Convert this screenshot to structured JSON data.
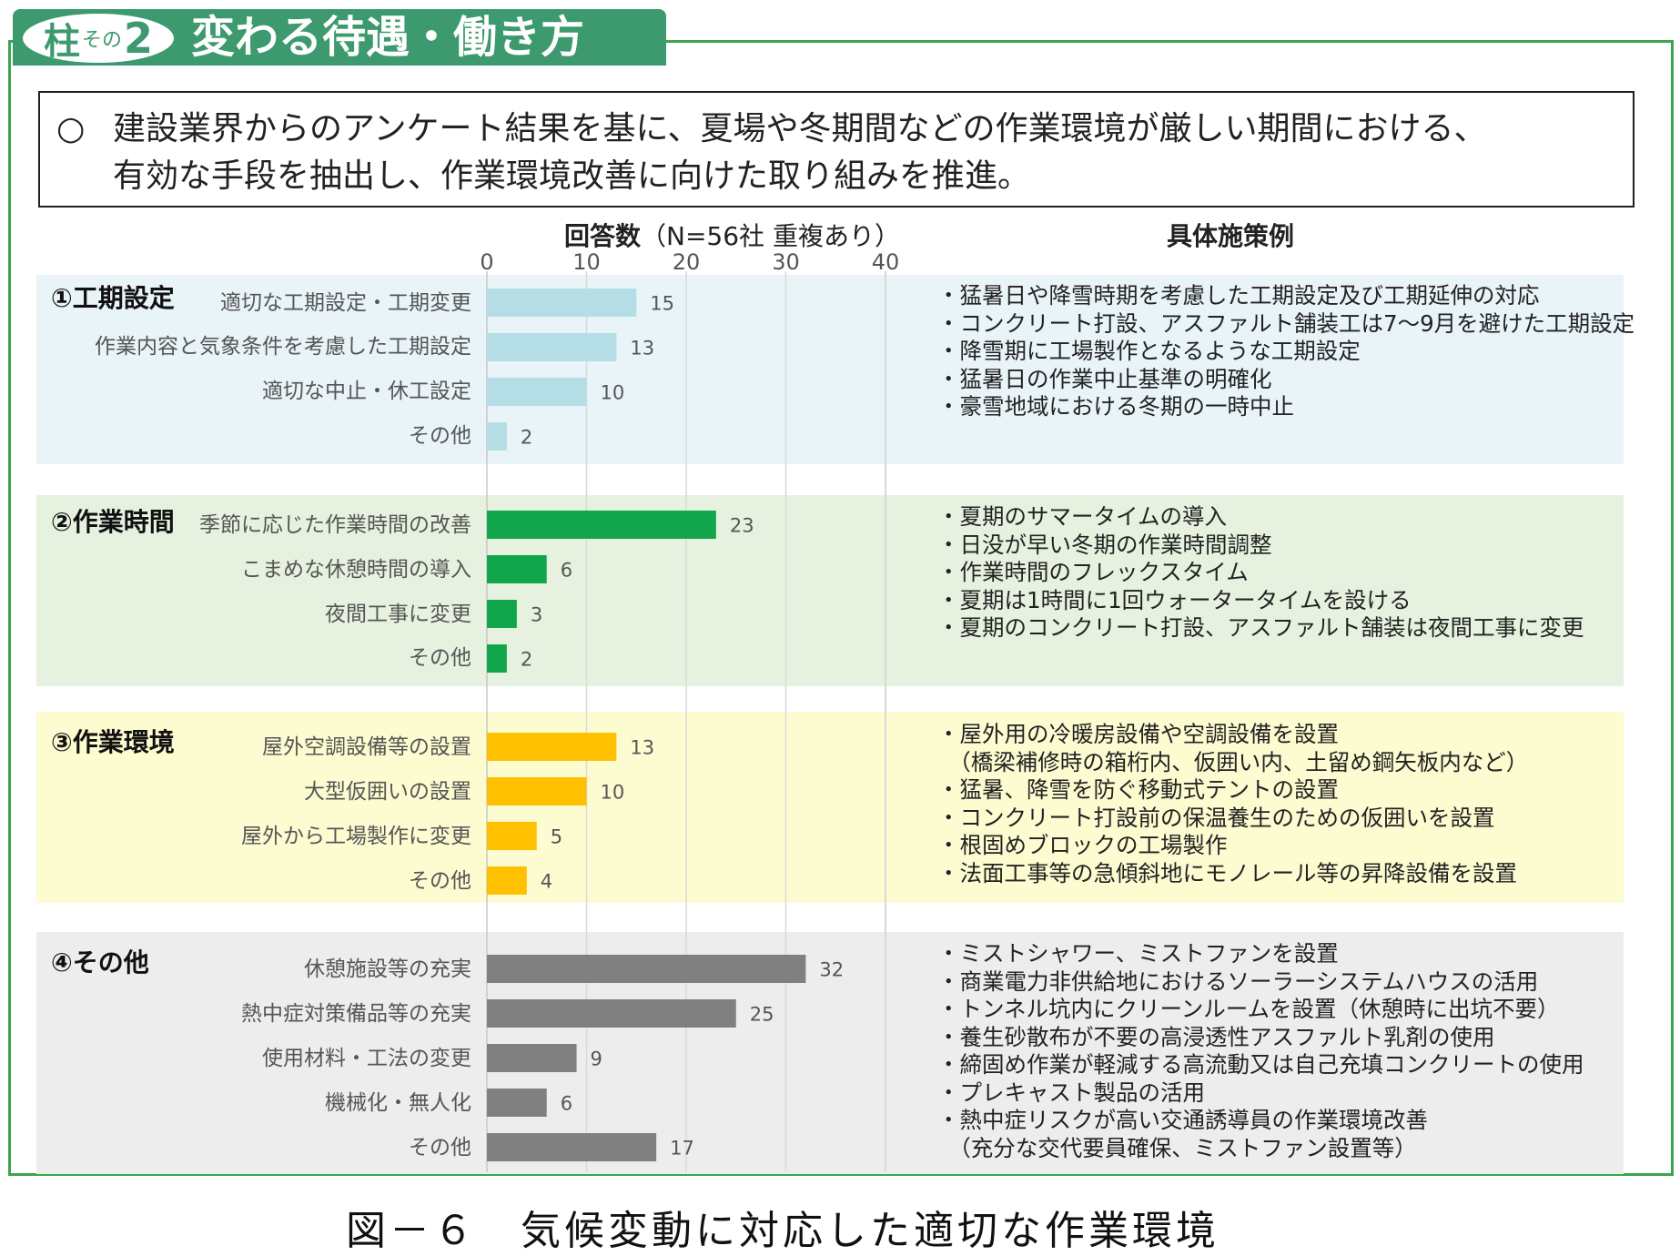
{
  "header": {
    "pillar_kanji": "柱",
    "pillar_sono": "その",
    "pillar_number": "2",
    "title": "変わる待遇・働き方"
  },
  "lead": {
    "mark": "○",
    "line1": "建設業界からのアンケート結果を基に、夏場や冬期間などの作業環境が厳しい期間における、",
    "line2": "有効な手段を抽出し、作業環境改善に向けた取り組みを推進。"
  },
  "column_headers": {
    "responses_bold": "回答数",
    "responses_note": "（N=56社 重複あり）",
    "measures": "具体施策例"
  },
  "colors": {
    "frame": "#3aa64d",
    "title_tab": "#3c9a6e",
    "bg_1": "#e8f4f8",
    "bg_2": "#e6f2df",
    "bg_3": "#fdfbd0",
    "bg_4": "#ededed",
    "bar_1": "#b4dde6",
    "bar_2": "#11a64b",
    "bar_3": "#ffc000",
    "bar_4": "#808080"
  },
  "chart_data": {
    "type": "bar",
    "orientation": "horizontal",
    "title": "回答数（N=56社 重複あり）",
    "xlim": [
      0,
      40
    ],
    "x_ticks": [
      0,
      10,
      20,
      30,
      40
    ],
    "grid": true,
    "groups": [
      {
        "name": "①工期設定",
        "categories": [
          "適切な工期設定・工期変更",
          "作業内容と気象条件を考慮した工期設定",
          "適切な中止・休工設定",
          "その他"
        ],
        "values": [
          15,
          13,
          10,
          2
        ]
      },
      {
        "name": "②作業時間",
        "categories": [
          "季節に応じた作業時間の改善",
          "こまめな休憩時間の導入",
          "夜間工事に変更",
          "その他"
        ],
        "values": [
          23,
          6,
          3,
          2
        ]
      },
      {
        "name": "③作業環境",
        "categories": [
          "屋外空調設備等の設置",
          "大型仮囲いの設置",
          "屋外から工場製作に変更",
          "その他"
        ],
        "values": [
          13,
          10,
          5,
          4
        ]
      },
      {
        "name": "④その他",
        "categories": [
          "休憩施設等の充実",
          "熱中症対策備品等の充実",
          "使用材料・工法の変更",
          "機械化・無人化",
          "その他"
        ],
        "values": [
          32,
          25,
          9,
          6,
          17
        ]
      }
    ]
  },
  "measures": [
    [
      "・猛暑日や降雪時期を考慮した工期設定及び工期延伸の対応",
      "・コンクリート打設、アスファルト舗装工は7～9月を避けた工期設定",
      "・降雪期に工場製作となるような工期設定",
      "・猛暑日の作業中止基準の明確化",
      "・豪雪地域における冬期の一時中止"
    ],
    [
      "・夏期のサマータイムの導入",
      "・日没が早い冬期の作業時間調整",
      "・作業時間のフレックスタイム",
      "・夏期は1時間に1回ウォータータイムを設ける",
      "・夏期のコンクリート打設、アスファルト舗装は夜間工事に変更"
    ],
    [
      "・屋外用の冷暖房設備や空調設備を設置",
      "　（橋梁補修時の箱桁内、仮囲い内、土留め鋼矢板内など）",
      "・猛暑、降雪を防ぐ移動式テントの設置",
      "・コンクリート打設前の保温養生のための仮囲いを設置",
      "・根固めブロックの工場製作",
      "・法面工事等の急傾斜地にモノレール等の昇降設備を設置"
    ],
    [
      "・ミストシャワー、ミストファンを設置",
      "・商業電力非供給地におけるソーラーシステムハウスの活用",
      "・トンネル坑内にクリーンルームを設置（休憩時に出坑不要）",
      "・養生砂散布が不要の高浸透性アスファルト乳剤の使用",
      "・締固め作業が軽減する高流動又は自己充填コンクリートの使用",
      "・プレキャスト製品の活用",
      "・熱中症リスクが高い交通誘導員の作業環境改善",
      "　（充分な交代要員確保、ミストファン設置等）"
    ]
  ],
  "caption": "図－６　気候変動に対応した適切な作業環境"
}
